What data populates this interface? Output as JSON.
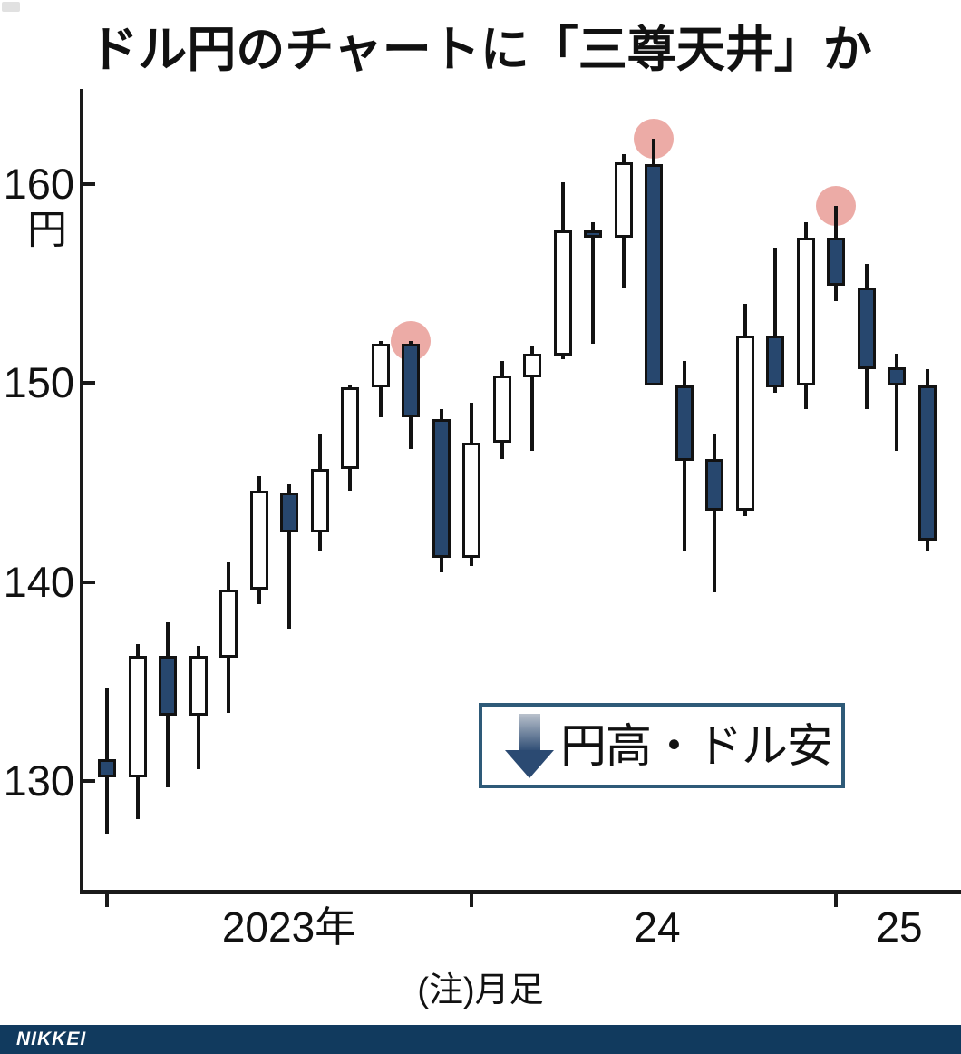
{
  "title": "ドル円のチャートに「三尊天井」か",
  "note": "(注)月足",
  "legend": {
    "icon": "down-arrow",
    "text": "円高・ドル安"
  },
  "footer": {
    "brand": "NIKKEI"
  },
  "axis": {
    "unit_label": "円",
    "y_tick_values": [
      160,
      150,
      140,
      130
    ],
    "x_tick_labels": [
      "2023年",
      "24",
      "25"
    ]
  },
  "colors": {
    "candle_down_fill": "#27476e",
    "candle_up_fill": "#ffffff",
    "candle_stroke": "#121212",
    "peak_circle": "#ecaba6",
    "footer_bar": "#113a5e",
    "legend_border": "#2e5a78",
    "arrow_gradient_top": "#b9c1cc",
    "arrow_gradient_bottom": "#2b4a72"
  },
  "chart_data": {
    "type": "candlestick",
    "title": "ドル円のチャートに「三尊天井」か",
    "ylabel": "円",
    "timeframe_note": "月足",
    "ylim": [
      124.4,
      164.7
    ],
    "y_ticks": [
      130,
      140,
      150,
      160
    ],
    "x_tick_positions": [
      "2023-01",
      "2024-01",
      "2025-01"
    ],
    "x": [
      "2023-01",
      "2023-02",
      "2023-03",
      "2023-04",
      "2023-05",
      "2023-06",
      "2023-07",
      "2023-08",
      "2023-09",
      "2023-10",
      "2023-11",
      "2023-12",
      "2024-01",
      "2024-02",
      "2024-03",
      "2024-04",
      "2024-05",
      "2024-06",
      "2024-07",
      "2024-08",
      "2024-09",
      "2024-10",
      "2024-11",
      "2024-12",
      "2025-01",
      "2025-02",
      "2025-03",
      "2025-04"
    ],
    "series": [
      {
        "name": "USD/JPY",
        "ohlc": [
          [
            131.1,
            134.7,
            127.3,
            130.2
          ],
          [
            130.2,
            136.9,
            128.1,
            136.3
          ],
          [
            136.3,
            138.0,
            129.7,
            133.3
          ],
          [
            133.3,
            136.8,
            130.6,
            136.3
          ],
          [
            136.2,
            141.0,
            133.4,
            139.6
          ],
          [
            139.6,
            145.3,
            138.9,
            144.6
          ],
          [
            144.5,
            144.9,
            137.6,
            142.5
          ],
          [
            142.5,
            147.4,
            141.6,
            145.7
          ],
          [
            145.7,
            149.9,
            144.6,
            149.8
          ],
          [
            149.8,
            152.1,
            148.3,
            152.0
          ],
          [
            152.0,
            152.1,
            146.7,
            148.3
          ],
          [
            148.2,
            148.7,
            140.5,
            141.2
          ],
          [
            141.2,
            149.0,
            140.8,
            147.0
          ],
          [
            147.0,
            151.1,
            146.2,
            150.4
          ],
          [
            150.3,
            151.9,
            146.6,
            151.5
          ],
          [
            151.4,
            160.1,
            151.2,
            157.7
          ],
          [
            157.7,
            158.1,
            152.0,
            157.3
          ],
          [
            157.3,
            161.5,
            154.8,
            161.1
          ],
          [
            161.0,
            162.3,
            149.9,
            149.9
          ],
          [
            149.9,
            151.1,
            141.6,
            146.1
          ],
          [
            146.2,
            147.4,
            139.5,
            143.6
          ],
          [
            143.6,
            154.0,
            143.3,
            152.4
          ],
          [
            152.4,
            156.8,
            149.5,
            149.8
          ],
          [
            149.9,
            158.1,
            148.7,
            157.3
          ],
          [
            157.3,
            158.9,
            154.1,
            154.9
          ],
          [
            154.8,
            156.0,
            148.7,
            150.7
          ],
          [
            150.8,
            151.5,
            146.6,
            149.9
          ],
          [
            149.9,
            150.7,
            141.6,
            142.1
          ]
        ]
      }
    ],
    "peak_marker_indices": [
      10,
      18,
      24
    ],
    "pattern_annotation": "三尊天井"
  }
}
